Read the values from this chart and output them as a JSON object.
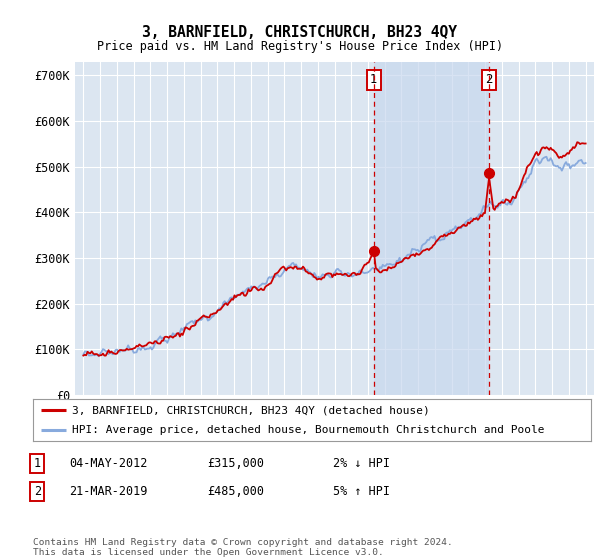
{
  "title": "3, BARNFIELD, CHRISTCHURCH, BH23 4QY",
  "subtitle": "Price paid vs. HM Land Registry's House Price Index (HPI)",
  "ylabel_ticks": [
    "£0",
    "£100K",
    "£200K",
    "£300K",
    "£400K",
    "£500K",
    "£600K",
    "£700K"
  ],
  "ylim": [
    0,
    730000
  ],
  "xlim_start": 1994.5,
  "xlim_end": 2025.5,
  "sale1_x": 2012.34,
  "sale1_y": 315000,
  "sale1_label": "1",
  "sale2_x": 2019.21,
  "sale2_y": 485000,
  "sale2_label": "2",
  "house_color": "#cc0000",
  "hpi_color": "#88aadd",
  "background_color": "#dce6f1",
  "shade_color": "#c8d8ee",
  "outer_bg_color": "#ffffff",
  "grid_color": "#ffffff",
  "legend_house": "3, BARNFIELD, CHRISTCHURCH, BH23 4QY (detached house)",
  "legend_hpi": "HPI: Average price, detached house, Bournemouth Christchurch and Poole",
  "annotation1_date": "04-MAY-2012",
  "annotation1_price": "£315,000",
  "annotation1_hpi": "2% ↓ HPI",
  "annotation2_date": "21-MAR-2019",
  "annotation2_price": "£485,000",
  "annotation2_hpi": "5% ↑ HPI",
  "footnote": "Contains HM Land Registry data © Crown copyright and database right 2024.\nThis data is licensed under the Open Government Licence v3.0.",
  "vline_color": "#cc0000",
  "marker_color": "#cc0000"
}
